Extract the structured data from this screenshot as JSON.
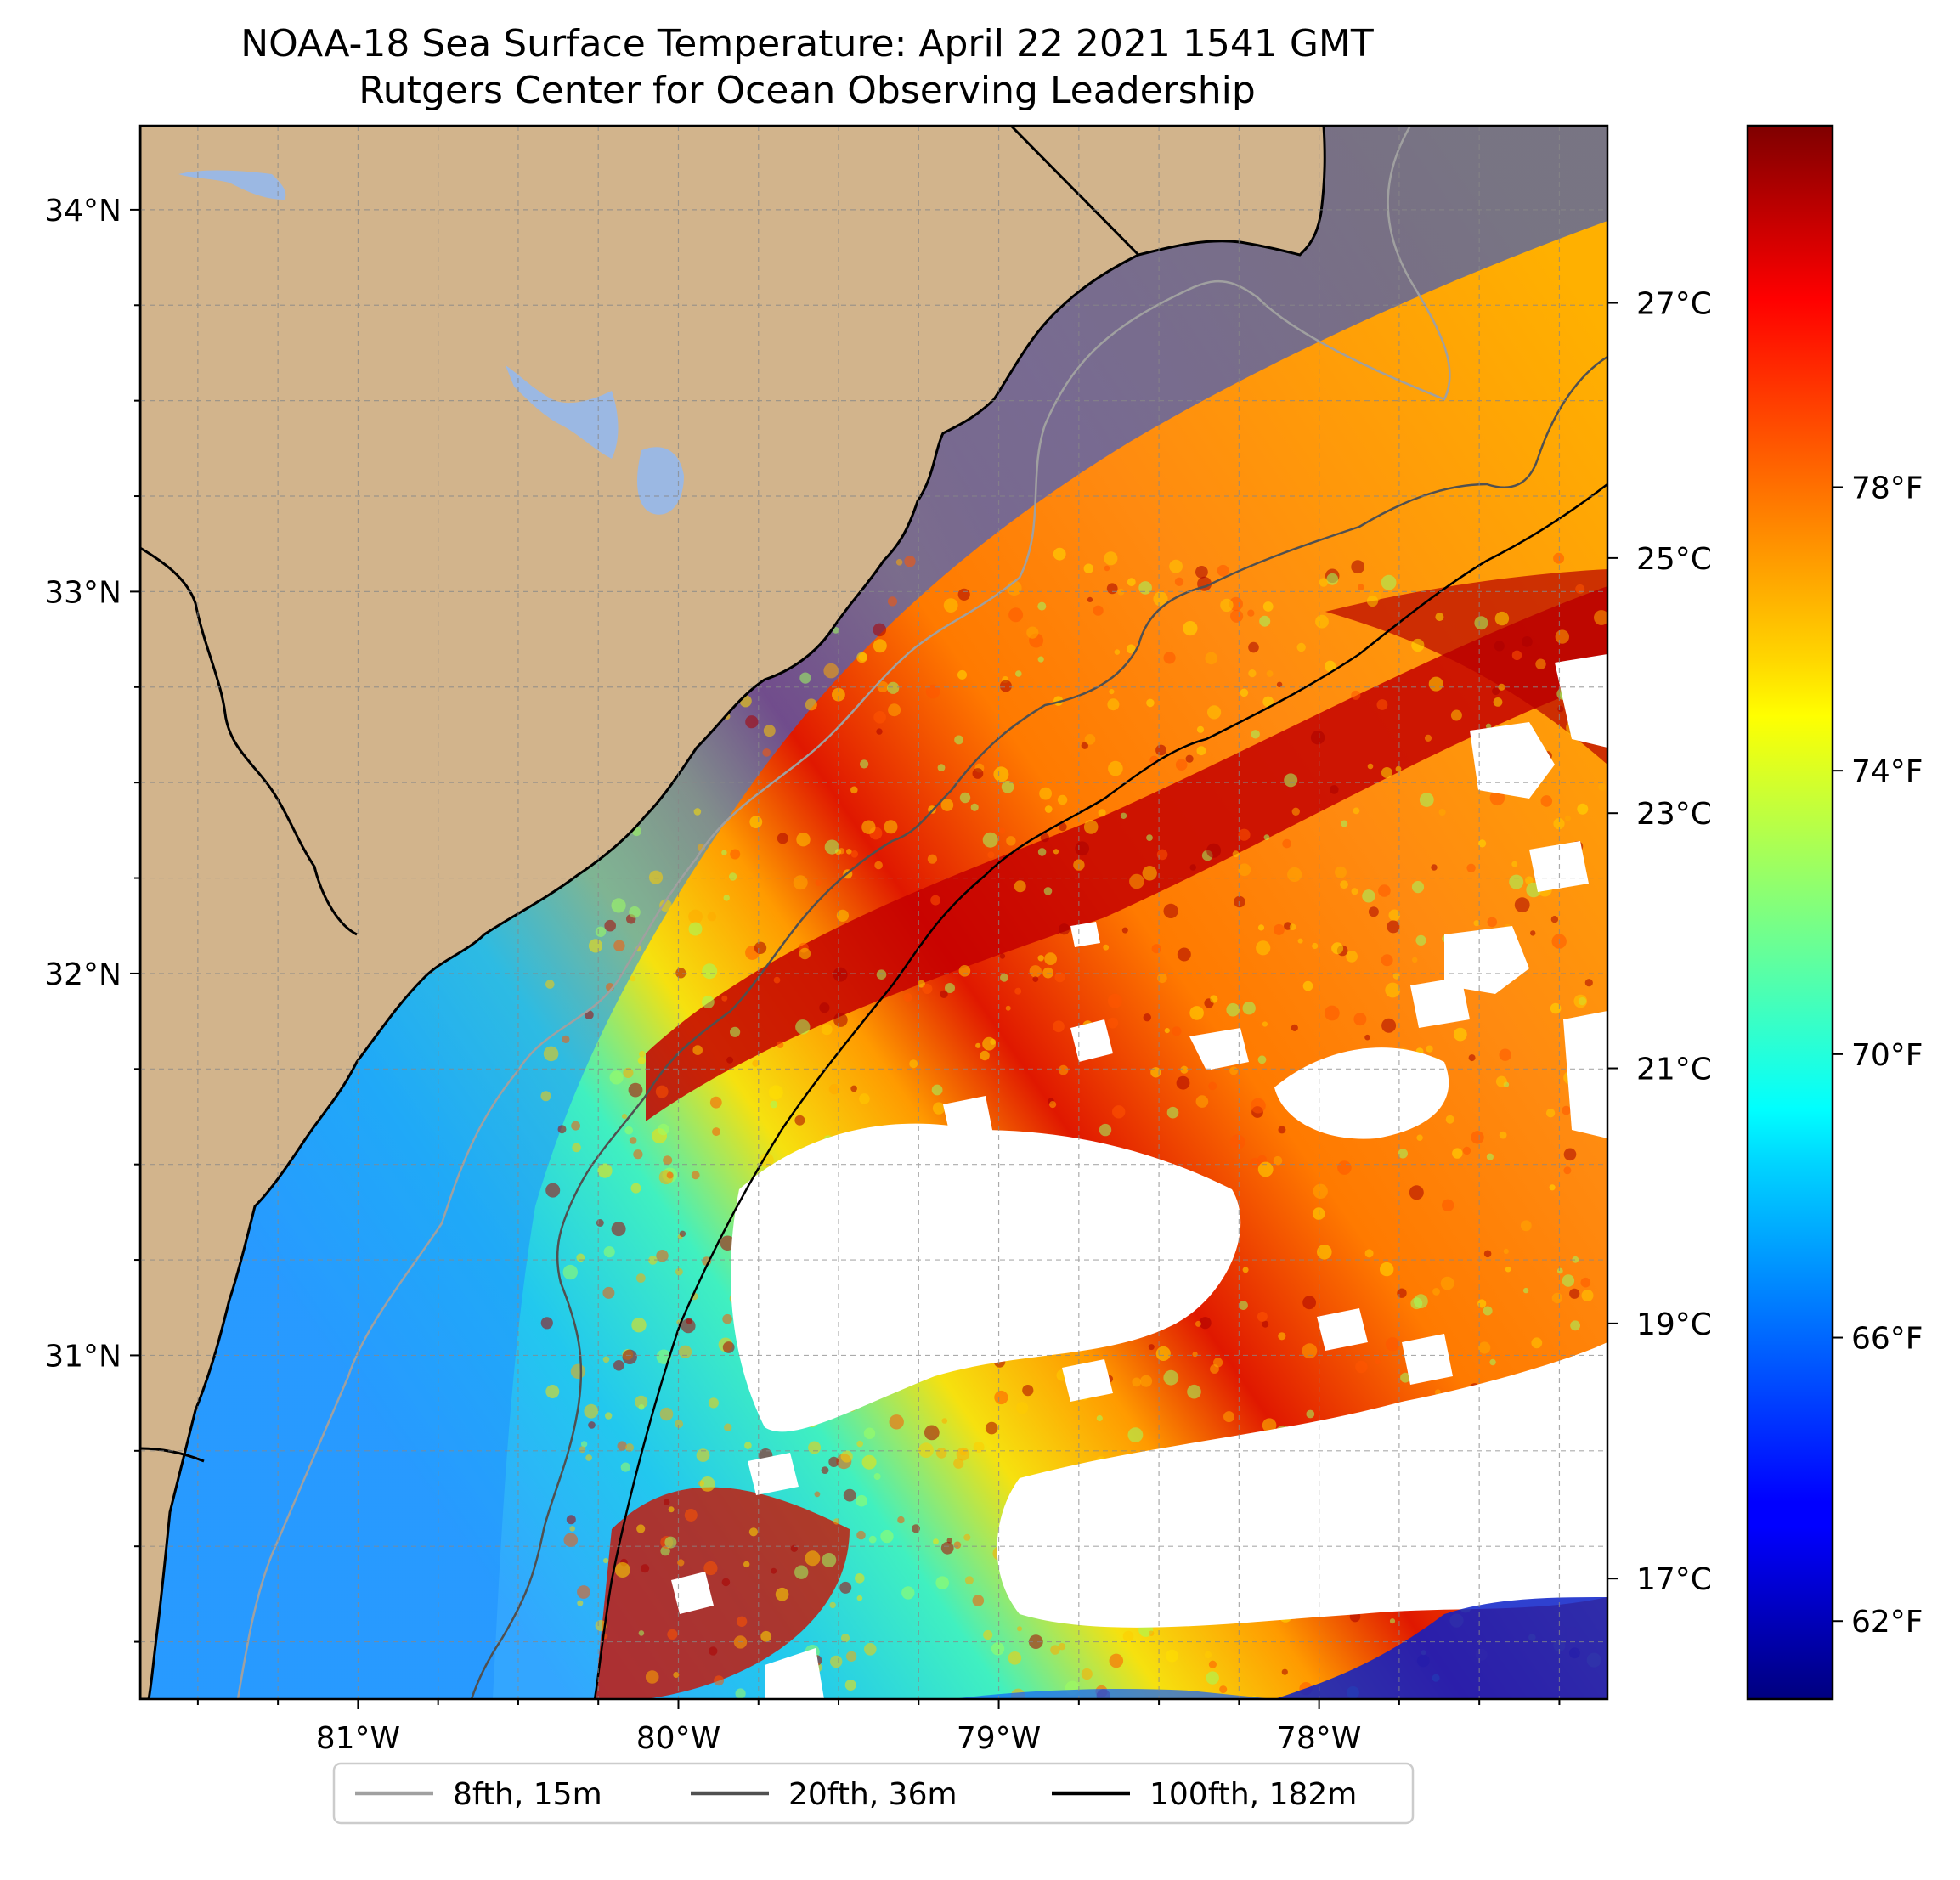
{
  "title": {
    "line1": "NOAA-18 Sea Surface Temperature: April 22 2021 1541 GMT",
    "line2": "Rutgers Center for Ocean Observing Leadership"
  },
  "map": {
    "lon_range": [
      -81.68,
      -77.1
    ],
    "lat_range": [
      30.1,
      34.22
    ],
    "lon_ticks": [
      {
        "value": -81,
        "label": "81°W"
      },
      {
        "value": -80,
        "label": "80°W"
      },
      {
        "value": -79,
        "label": "79°W"
      },
      {
        "value": -78,
        "label": "78°W"
      }
    ],
    "lat_ticks": [
      {
        "value": 34,
        "label": "34°N"
      },
      {
        "value": 33,
        "label": "33°N"
      },
      {
        "value": 32,
        "label": "32°N"
      },
      {
        "value": 31,
        "label": "31°N"
      }
    ],
    "land_color": "#d2b48c",
    "lake_color": "#9bb8e3",
    "no_data_color": "#ffffff",
    "gridlines": true
  },
  "colorbar": {
    "colormap": "jet",
    "fahrenheit_ticks": [
      "62°F",
      "66°F",
      "70°F",
      "74°F",
      "78°F"
    ],
    "celsius_ticks": [
      "17°C",
      "19°C",
      "21°C",
      "23°C",
      "25°C",
      "27°C"
    ]
  },
  "legend": {
    "placement": "bottom-center",
    "items": [
      {
        "label": "8fth, 15m",
        "color": "#a0a0a0"
      },
      {
        "label": "20fth, 36m",
        "color": "#505050"
      },
      {
        "label": "100fth, 182m",
        "color": "#000000"
      }
    ]
  }
}
